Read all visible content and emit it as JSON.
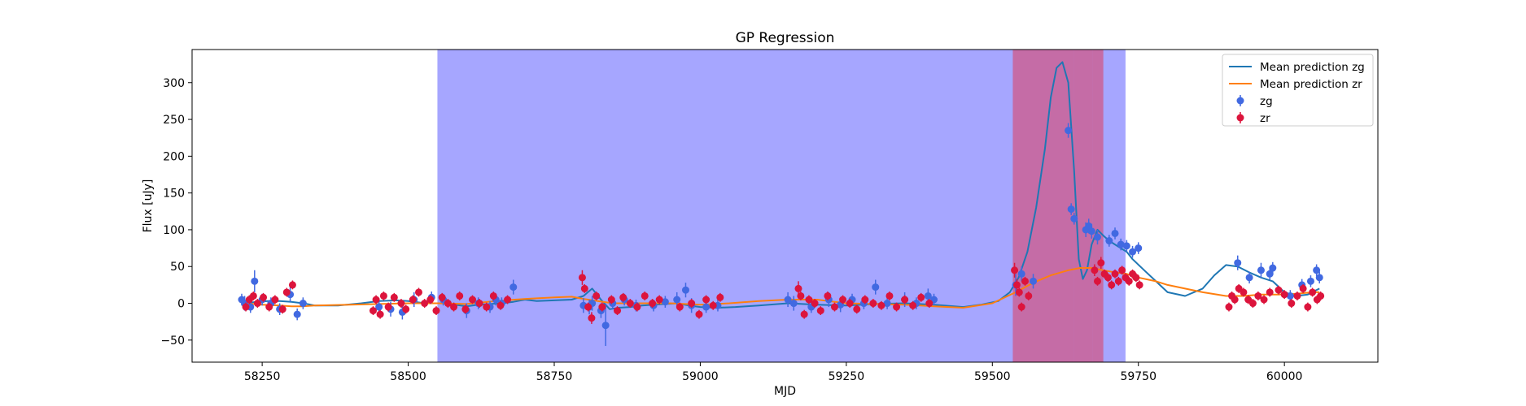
{
  "chart_data": {
    "type": "scatter",
    "title": "GP Regression",
    "xlabel": "MJD",
    "ylabel": "Flux [uJy]",
    "xlim": [
      58130,
      60160
    ],
    "ylim": [
      -80,
      345
    ],
    "xticks": [
      58250,
      58500,
      58750,
      59000,
      59250,
      59500,
      59750,
      60000
    ],
    "yticks": [
      -50,
      0,
      50,
      100,
      150,
      200,
      250,
      300
    ],
    "grid": false,
    "legend_position": "top-right",
    "shaded_regions": [
      {
        "x0": 58550,
        "x1": 59728,
        "color": "#0000ff",
        "opacity": 0.35
      },
      {
        "x0": 59535,
        "x1": 59640,
        "color": "#ff0000",
        "opacity": 0.35
      },
      {
        "x0": 59640,
        "x1": 59672,
        "color": "#ff0000",
        "opacity": 0.35
      },
      {
        "x0": 59672,
        "x1": 59690,
        "color": "#ff0000",
        "opacity": 0.35
      }
    ],
    "series": [
      {
        "name": "Mean prediction zg",
        "kind": "line",
        "color": "#1f77b4",
        "x": [
          58220,
          58240,
          58260,
          58280,
          58300,
          58320,
          58340,
          58380,
          58420,
          58450,
          58480,
          58500,
          58520,
          58540,
          58560,
          58580,
          58600,
          58620,
          58640,
          58660,
          58680,
          58700,
          58720,
          58750,
          58780,
          58800,
          58815,
          58830,
          58845,
          58860,
          58880,
          58900,
          58920,
          58940,
          58960,
          58980,
          59000,
          59030,
          59060,
          59100,
          59150,
          59200,
          59250,
          59300,
          59350,
          59400,
          59450,
          59480,
          59510,
          59530,
          59545,
          59560,
          59575,
          59590,
          59600,
          59610,
          59620,
          59630,
          59640,
          59648,
          59655,
          59662,
          59670,
          59680,
          59690,
          59700,
          59710,
          59720,
          59730,
          59740,
          59760,
          59780,
          59800,
          59830,
          59860,
          59880,
          59900,
          59920,
          59940,
          59960,
          59980,
          60000,
          60020,
          60040,
          60060
        ],
        "y": [
          0,
          2,
          3,
          3,
          2,
          0,
          -3,
          -3,
          0,
          3,
          4,
          3,
          1,
          0,
          0,
          -2,
          -4,
          -2,
          -1,
          0,
          2,
          5,
          3,
          4,
          5,
          10,
          20,
          5,
          -8,
          -6,
          -5,
          -3,
          -2,
          -1,
          0,
          -3,
          -5,
          -6,
          -5,
          -3,
          0,
          -2,
          -3,
          -1,
          0,
          -2,
          -5,
          -2,
          3,
          15,
          35,
          70,
          130,
          210,
          280,
          320,
          328,
          300,
          180,
          60,
          33,
          45,
          80,
          100,
          92,
          85,
          80,
          75,
          70,
          60,
          45,
          30,
          15,
          10,
          20,
          38,
          52,
          50,
          42,
          35,
          30,
          15,
          10,
          12,
          20
        ]
      },
      {
        "name": "Mean prediction zr",
        "kind": "line",
        "color": "#ff7f0e",
        "x": [
          58220,
          58250,
          58280,
          58300,
          58320,
          58340,
          58400,
          58450,
          58500,
          58550,
          58600,
          58650,
          58700,
          58750,
          58780,
          58800,
          58850,
          58900,
          58950,
          59000,
          59050,
          59100,
          59150,
          59200,
          59250,
          59300,
          59350,
          59400,
          59450,
          59500,
          59540,
          59570,
          59600,
          59630,
          59650,
          59670,
          59690,
          59710,
          59730,
          59750,
          59780,
          59800,
          59830,
          59860,
          59900,
          59930,
          59960,
          59990,
          60020,
          60050,
          60060
        ],
        "y": [
          0,
          -2,
          -3,
          -4,
          -4,
          -3,
          -2,
          -1,
          0,
          0,
          -1,
          3,
          6,
          8,
          9,
          6,
          0,
          0,
          0,
          -2,
          0,
          3,
          5,
          5,
          0,
          -1,
          -2,
          -4,
          -6,
          0,
          15,
          28,
          38,
          45,
          48,
          48,
          45,
          42,
          40,
          35,
          30,
          25,
          20,
          15,
          10,
          10,
          12,
          12,
          13,
          15,
          15
        ]
      },
      {
        "name": "zg",
        "kind": "points",
        "color": "#4169e1",
        "x": [
          58215,
          58220,
          58230,
          58237,
          58250,
          58265,
          58280,
          58298,
          58310,
          58320,
          58450,
          58470,
          58490,
          58510,
          58540,
          58560,
          58600,
          58620,
          58640,
          58650,
          58660,
          58680,
          58800,
          58810,
          58815,
          58830,
          58838,
          58850,
          58870,
          58890,
          58920,
          58940,
          58960,
          58975,
          58985,
          59010,
          59030,
          59150,
          59160,
          59190,
          59220,
          59240,
          59260,
          59280,
          59300,
          59320,
          59350,
          59370,
          59390,
          59400,
          59540,
          59550,
          59570,
          59630,
          59635,
          59640,
          59660,
          59665,
          59670,
          59680,
          59700,
          59710,
          59720,
          59730,
          59740,
          59750,
          59920,
          59940,
          59960,
          59975,
          59980,
          60010,
          60030,
          60045,
          60055,
          60060
        ],
        "y": [
          5,
          0,
          -5,
          30,
          5,
          0,
          -8,
          12,
          -15,
          0,
          -5,
          -8,
          -12,
          5,
          8,
          5,
          -10,
          0,
          -5,
          5,
          0,
          22,
          -3,
          -5,
          0,
          -10,
          -30,
          0,
          5,
          -3,
          -3,
          2,
          5,
          18,
          -3,
          -5,
          -3,
          5,
          0,
          -5,
          5,
          -2,
          5,
          0,
          22,
          0,
          5,
          0,
          10,
          5,
          25,
          40,
          30,
          235,
          128,
          115,
          100,
          105,
          98,
          90,
          85,
          95,
          80,
          78,
          70,
          75,
          55,
          35,
          45,
          40,
          48,
          10,
          25,
          30,
          45,
          35
        ],
        "yerr": [
          8,
          10,
          8,
          15,
          8,
          8,
          8,
          10,
          8,
          8,
          8,
          10,
          10,
          10,
          8,
          8,
          10,
          8,
          8,
          8,
          8,
          10,
          10,
          10,
          10,
          10,
          28,
          8,
          8,
          8,
          8,
          8,
          10,
          10,
          10,
          8,
          8,
          10,
          10,
          8,
          10,
          10,
          8,
          8,
          10,
          8,
          10,
          8,
          10,
          8,
          15,
          10,
          10,
          10,
          8,
          8,
          10,
          10,
          10,
          10,
          8,
          8,
          8,
          8,
          8,
          8,
          10,
          8,
          10,
          8,
          8,
          8,
          8,
          8,
          8,
          8
        ]
      },
      {
        "name": "zr",
        "kind": "points",
        "color": "#dc143c",
        "x": [
          58222,
          58228,
          58235,
          58242,
          58252,
          58262,
          58272,
          58285,
          58292,
          58302,
          58440,
          58445,
          58452,
          58458,
          58466,
          58476,
          58488,
          58496,
          58508,
          58518,
          58528,
          58538,
          58548,
          58558,
          58568,
          58578,
          58588,
          58598,
          58610,
          58622,
          58634,
          58646,
          58658,
          58670,
          58798,
          58802,
          58808,
          58814,
          58822,
          58832,
          58848,
          58858,
          58868,
          58880,
          58892,
          58905,
          58918,
          58930,
          58965,
          58985,
          58998,
          59010,
          59022,
          59034,
          59168,
          59172,
          59178,
          59186,
          59196,
          59206,
          59218,
          59230,
          59244,
          59256,
          59268,
          59282,
          59296,
          59310,
          59324,
          59336,
          59350,
          59364,
          59378,
          59392,
          59538,
          59542,
          59546,
          59550,
          59556,
          59562,
          59675,
          59680,
          59686,
          59692,
          59698,
          59704,
          59710,
          59716,
          59722,
          59728,
          59734,
          59740,
          59746,
          59752,
          59905,
          59910,
          59915,
          59922,
          59930,
          59938,
          59946,
          59955,
          59965,
          59975,
          59990,
          60000,
          60012,
          60022,
          60032,
          60040,
          60048,
          60056,
          60062
        ],
        "y": [
          -5,
          5,
          10,
          0,
          8,
          -5,
          5,
          -8,
          15,
          25,
          -10,
          5,
          -15,
          10,
          -5,
          8,
          0,
          -8,
          5,
          15,
          0,
          5,
          -10,
          8,
          0,
          -5,
          10,
          -8,
          5,
          0,
          -5,
          10,
          -3,
          5,
          35,
          20,
          -5,
          -20,
          10,
          -5,
          5,
          -10,
          8,
          0,
          -5,
          10,
          0,
          5,
          -5,
          0,
          -15,
          5,
          -3,
          8,
          20,
          10,
          -15,
          5,
          0,
          -10,
          10,
          -5,
          5,
          0,
          -8,
          5,
          0,
          -3,
          10,
          -5,
          5,
          -3,
          8,
          0,
          45,
          25,
          15,
          -5,
          30,
          10,
          45,
          30,
          55,
          40,
          35,
          25,
          40,
          30,
          45,
          35,
          30,
          40,
          35,
          25,
          -5,
          10,
          5,
          20,
          15,
          5,
          0,
          10,
          5,
          15,
          18,
          12,
          0,
          10,
          20,
          -5,
          15,
          5,
          10
        ],
        "yerr": [
          6,
          6,
          6,
          6,
          6,
          6,
          6,
          6,
          6,
          6,
          6,
          6,
          6,
          6,
          6,
          6,
          6,
          6,
          6,
          6,
          6,
          6,
          6,
          6,
          6,
          6,
          6,
          6,
          6,
          6,
          6,
          6,
          6,
          6,
          10,
          6,
          6,
          8,
          6,
          6,
          6,
          6,
          6,
          6,
          6,
          6,
          6,
          6,
          6,
          6,
          6,
          6,
          6,
          6,
          10,
          6,
          6,
          6,
          6,
          6,
          6,
          6,
          6,
          6,
          6,
          6,
          6,
          6,
          6,
          6,
          6,
          6,
          6,
          6,
          10,
          8,
          6,
          6,
          6,
          6,
          8,
          6,
          8,
          6,
          6,
          6,
          6,
          6,
          6,
          6,
          6,
          6,
          6,
          6,
          6,
          6,
          6,
          6,
          6,
          6,
          6,
          6,
          6,
          6,
          6,
          6,
          6,
          6,
          6,
          6,
          6,
          6,
          6
        ]
      }
    ]
  }
}
